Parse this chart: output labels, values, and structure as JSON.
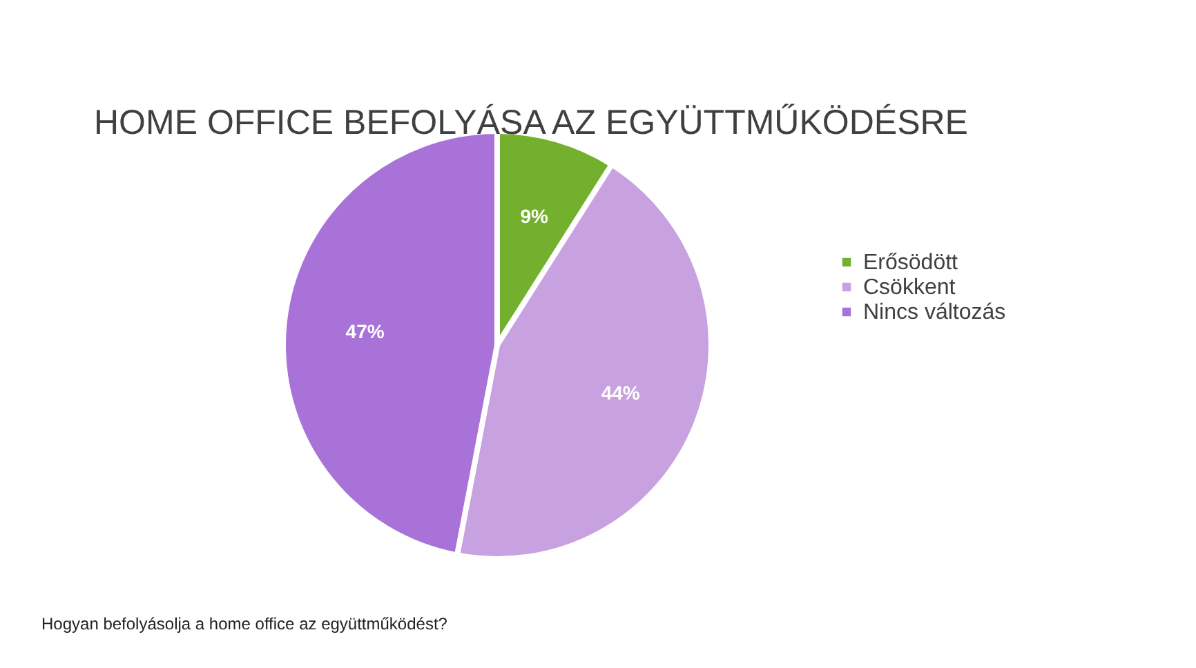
{
  "chart_data": {
    "type": "pie",
    "title": "HOME OFFICE BEFOLYÁSA AZ EGYÜTTMŰKÖDÉSRE",
    "categories": [
      "Erősödött",
      "Csökkent",
      "Nincs változás"
    ],
    "values": [
      9,
      44,
      47
    ],
    "colors": [
      "#72b02e",
      "#c8a2e0",
      "#a872d8"
    ],
    "value_labels": [
      "9%",
      "44%",
      "47%"
    ],
    "legend": "right",
    "annotations": [
      "Hogyan befolyásolja a home office az együttműködést?"
    ]
  }
}
